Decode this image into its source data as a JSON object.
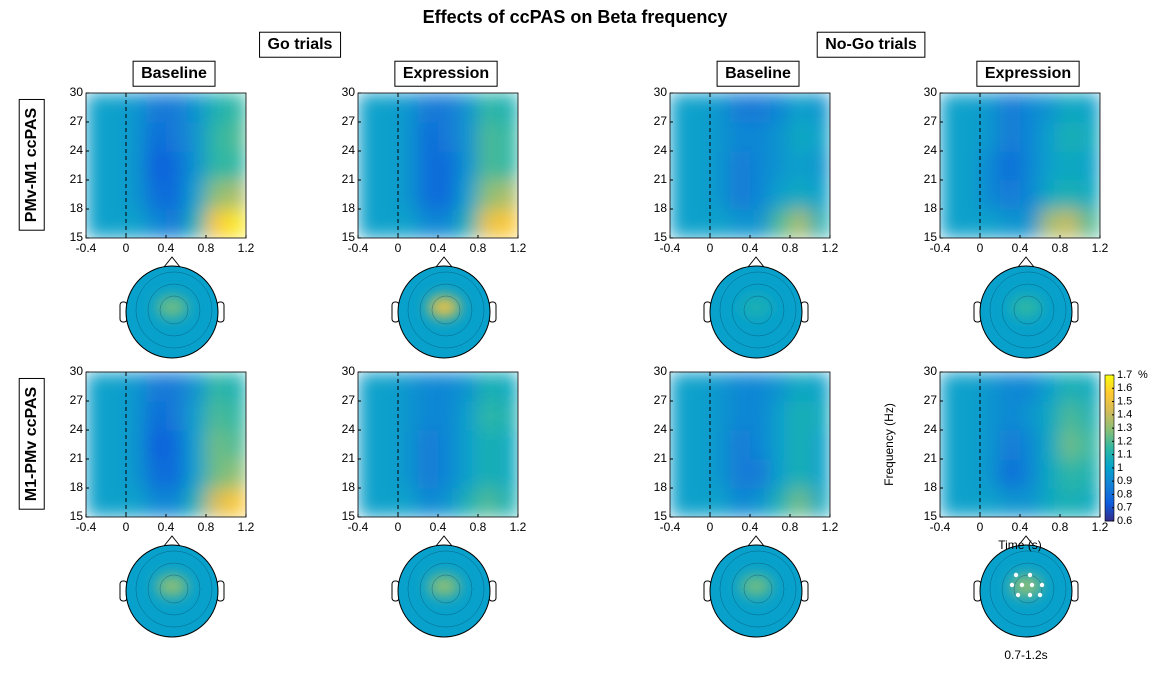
{
  "chart_data": {
    "type": "heatmap",
    "title": "Effects of ccPAS on Beta frequency",
    "groups": [
      "Go trials",
      "No-Go trials"
    ],
    "columns": [
      "Baseline",
      "Expression",
      "Baseline",
      "Expression"
    ],
    "rows": [
      "PMv-M1 ccPAS",
      "M1-PMv ccPAS"
    ],
    "xlabel": "Time (s)",
    "ylabel": "Frequency (Hz)",
    "xlim": [
      -0.4,
      1.2
    ],
    "ylim": [
      15,
      30
    ],
    "xticks": [
      -0.4,
      0,
      0.4,
      0.8,
      1.2
    ],
    "yticks": [
      15,
      18,
      21,
      24,
      27,
      30
    ],
    "onset_line_x": 0,
    "clim": [
      0.6,
      1.7
    ],
    "colorbar_ticks": [
      0.6,
      0.7,
      0.8,
      0.9,
      1,
      1.1,
      1.2,
      1.3,
      1.4,
      1.5,
      1.6,
      1.7
    ],
    "colorbar_unit": "%",
    "colormap": [
      "#352a87",
      "#0f5cdd",
      "#1481d6",
      "#06a4ca",
      "#2eb7a4",
      "#87bf77",
      "#d1bb59",
      "#fec832",
      "#f9fb0e"
    ],
    "topo_base": 1.0,
    "topo_window": "0.7-1.2s",
    "panels": [
      {
        "values": [
          [
            1.0,
            1.0,
            1.0,
            0.9,
            0.85,
            1.1,
            1.55,
            1.65
          ],
          [
            1.0,
            1.0,
            0.95,
            0.8,
            0.8,
            1.0,
            1.3,
            1.35
          ],
          [
            1.0,
            1.0,
            0.95,
            0.75,
            0.8,
            0.95,
            1.15,
            1.15
          ],
          [
            1.0,
            1.0,
            0.95,
            0.8,
            0.85,
            0.95,
            1.15,
            1.2
          ],
          [
            1.0,
            1.0,
            0.95,
            0.85,
            0.85,
            0.95,
            1.1,
            1.15
          ]
        ],
        "topo_peak": 1.25
      },
      {
        "values": [
          [
            1.0,
            1.0,
            1.0,
            0.9,
            0.9,
            1.1,
            1.5,
            1.55
          ],
          [
            1.0,
            1.0,
            0.95,
            0.8,
            0.8,
            1.0,
            1.3,
            1.35
          ],
          [
            1.0,
            1.0,
            0.95,
            0.8,
            0.8,
            0.95,
            1.2,
            1.15
          ],
          [
            1.0,
            1.0,
            0.95,
            0.8,
            0.85,
            0.95,
            1.2,
            1.15
          ],
          [
            1.0,
            1.0,
            0.95,
            0.85,
            0.85,
            0.95,
            1.15,
            1.1
          ]
        ],
        "topo_peak": 1.5
      },
      {
        "values": [
          [
            1.0,
            1.0,
            1.0,
            0.95,
            0.95,
            1.2,
            1.35,
            1.1
          ],
          [
            1.0,
            1.0,
            0.95,
            0.85,
            0.9,
            1.0,
            1.05,
            1.0
          ],
          [
            1.0,
            1.0,
            0.95,
            0.85,
            0.9,
            0.95,
            1.0,
            0.95
          ],
          [
            1.0,
            1.0,
            0.95,
            0.9,
            0.9,
            0.95,
            1.05,
            1.0
          ],
          [
            1.0,
            1.0,
            0.95,
            0.85,
            0.85,
            0.9,
            1.0,
            0.95
          ]
        ],
        "topo_peak": 1.1
      },
      {
        "values": [
          [
            1.0,
            1.0,
            1.0,
            0.95,
            0.95,
            1.35,
            1.4,
            1.2
          ],
          [
            1.0,
            1.0,
            0.9,
            0.85,
            0.9,
            1.05,
            1.1,
            1.05
          ],
          [
            1.0,
            1.0,
            0.9,
            0.8,
            0.9,
            1.0,
            1.05,
            1.0
          ],
          [
            1.0,
            1.0,
            0.95,
            0.85,
            0.9,
            1.0,
            1.1,
            1.05
          ],
          [
            1.0,
            1.0,
            0.95,
            0.85,
            0.9,
            0.95,
            1.05,
            1.0
          ]
        ],
        "topo_peak": 1.15
      },
      {
        "values": [
          [
            1.0,
            1.0,
            1.0,
            0.9,
            0.9,
            1.1,
            1.45,
            1.55
          ],
          [
            1.0,
            1.0,
            0.95,
            0.8,
            0.8,
            1.0,
            1.25,
            1.3
          ],
          [
            1.0,
            1.0,
            0.95,
            0.75,
            0.8,
            1.0,
            1.25,
            1.2
          ],
          [
            1.0,
            1.0,
            0.95,
            0.8,
            0.85,
            1.0,
            1.2,
            1.15
          ],
          [
            1.0,
            1.0,
            0.95,
            0.85,
            0.85,
            0.95,
            1.15,
            1.1
          ]
        ],
        "topo_peak": 1.3
      },
      {
        "values": [
          [
            1.0,
            1.0,
            1.0,
            0.9,
            0.95,
            1.1,
            1.2,
            1.1
          ],
          [
            1.0,
            1.0,
            0.95,
            0.85,
            0.9,
            1.0,
            1.1,
            1.05
          ],
          [
            1.0,
            1.0,
            0.95,
            0.85,
            0.9,
            1.0,
            1.1,
            1.05
          ],
          [
            1.0,
            1.0,
            0.95,
            0.9,
            0.9,
            1.0,
            1.15,
            1.1
          ],
          [
            1.0,
            1.0,
            0.95,
            0.9,
            0.9,
            0.95,
            1.1,
            1.05
          ]
        ],
        "topo_peak": 1.3
      },
      {
        "values": [
          [
            1.0,
            1.0,
            1.0,
            0.9,
            0.95,
            1.1,
            1.25,
            1.05
          ],
          [
            1.0,
            1.0,
            0.95,
            0.85,
            0.85,
            1.0,
            1.1,
            1.0
          ],
          [
            1.0,
            1.0,
            0.95,
            0.85,
            0.9,
            1.0,
            1.1,
            1.0
          ],
          [
            1.0,
            1.0,
            0.95,
            0.9,
            0.9,
            1.0,
            1.1,
            1.05
          ],
          [
            1.0,
            1.0,
            0.95,
            0.9,
            0.9,
            0.95,
            1.05,
            1.0
          ]
        ],
        "topo_peak": 1.25
      },
      {
        "values": [
          [
            1.0,
            1.0,
            1.0,
            0.95,
            0.95,
            1.05,
            1.1,
            1.05
          ],
          [
            1.0,
            1.0,
            0.95,
            0.8,
            0.9,
            1.05,
            1.15,
            1.1
          ],
          [
            1.0,
            1.0,
            0.95,
            0.85,
            0.9,
            1.05,
            1.25,
            1.15
          ],
          [
            1.0,
            1.0,
            0.95,
            0.9,
            0.95,
            1.05,
            1.2,
            1.1
          ],
          [
            1.0,
            1.0,
            0.95,
            0.9,
            0.9,
            1.0,
            1.1,
            1.05
          ]
        ],
        "topo_peak": 1.3
      }
    ]
  }
}
